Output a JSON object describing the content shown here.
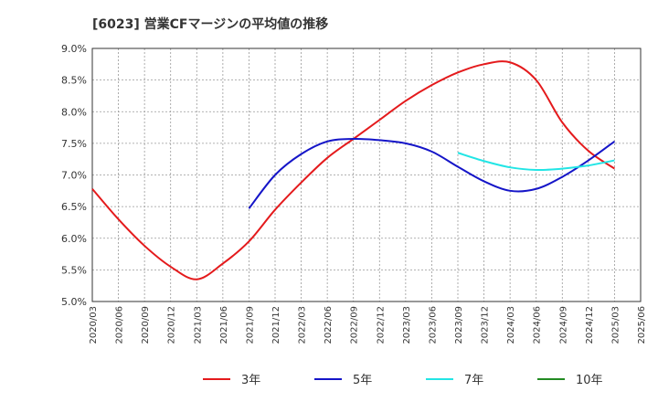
{
  "chart_data": {
    "type": "line",
    "title": "[6023]  営業CFマージンの平均値の推移",
    "xlabel": "",
    "ylabel": "",
    "x_ticks": [
      "2020/03",
      "2020/06",
      "2020/09",
      "2020/12",
      "2021/03",
      "2021/06",
      "2021/09",
      "2021/12",
      "2022/03",
      "2022/06",
      "2022/09",
      "2022/12",
      "2023/03",
      "2023/06",
      "2023/09",
      "2023/12",
      "2024/03",
      "2024/06",
      "2024/09",
      "2024/12",
      "2025/03",
      "2025/06"
    ],
    "y_ticks": [
      "5.0%",
      "5.5%",
      "6.0%",
      "6.5%",
      "7.0%",
      "7.5%",
      "8.0%",
      "8.5%",
      "9.0%"
    ],
    "ylim": [
      5.0,
      9.0
    ],
    "grid": true,
    "legend_position": "bottom",
    "series": [
      {
        "name": "3年",
        "color": "#e41a1c",
        "x": [
          "2020/03",
          "2020/06",
          "2020/09",
          "2020/12",
          "2021/03",
          "2021/06",
          "2021/09",
          "2021/12",
          "2022/03",
          "2022/06",
          "2022/09",
          "2022/12",
          "2023/03",
          "2023/06",
          "2023/09",
          "2023/12",
          "2024/03",
          "2024/06",
          "2024/09",
          "2024/12",
          "2025/03"
        ],
        "values": [
          6.78,
          6.3,
          5.88,
          5.55,
          5.35,
          5.6,
          5.95,
          6.45,
          6.88,
          7.27,
          7.57,
          7.87,
          8.17,
          8.42,
          8.62,
          8.75,
          8.78,
          8.5,
          7.83,
          7.38,
          7.1
        ]
      },
      {
        "name": "5年",
        "color": "#1515c8",
        "x": [
          "2021/09",
          "2021/12",
          "2022/03",
          "2022/06",
          "2022/09",
          "2022/12",
          "2023/03",
          "2023/06",
          "2023/09",
          "2023/12",
          "2024/03",
          "2024/06",
          "2024/09",
          "2024/12",
          "2025/03"
        ],
        "values": [
          6.47,
          7.0,
          7.33,
          7.53,
          7.57,
          7.55,
          7.5,
          7.37,
          7.13,
          6.9,
          6.75,
          6.78,
          6.97,
          7.23,
          7.53
        ]
      },
      {
        "name": "7年",
        "color": "#22e5e5",
        "x": [
          "2023/09",
          "2023/12",
          "2024/03",
          "2024/06",
          "2024/09",
          "2024/12",
          "2025/03"
        ],
        "values": [
          7.35,
          7.22,
          7.12,
          7.08,
          7.1,
          7.15,
          7.23
        ]
      },
      {
        "name": "10年",
        "color": "#228b22",
        "x": [],
        "values": []
      }
    ]
  }
}
